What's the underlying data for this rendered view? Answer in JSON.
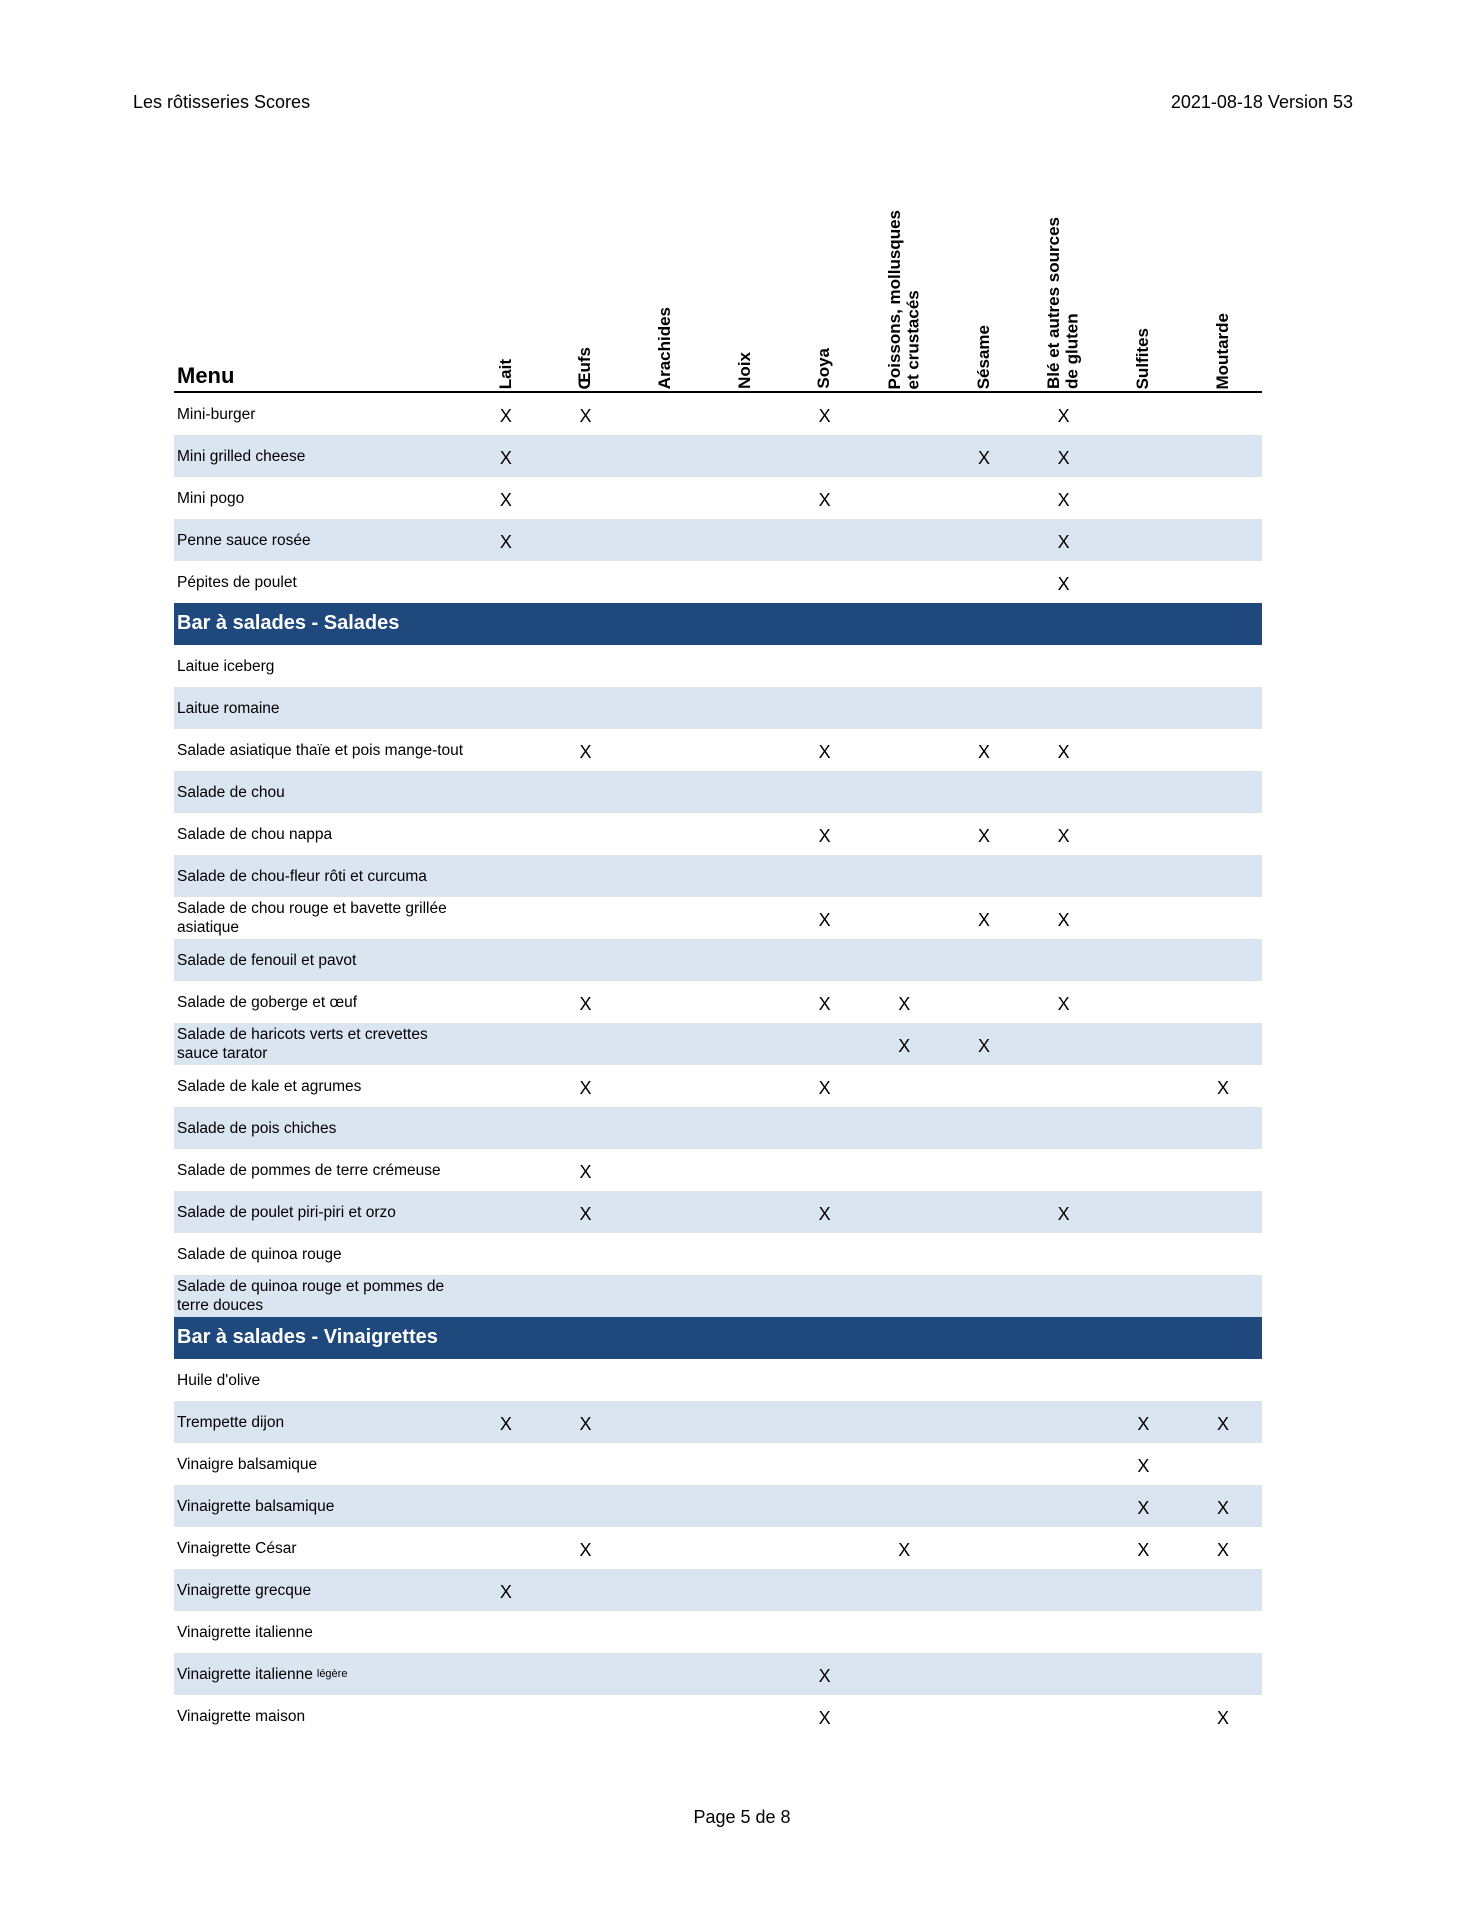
{
  "header": {
    "title": "Les rôtisseries Scores",
    "version": "2021-08-18 Version 53"
  },
  "footer": {
    "page": "Page 5 de 8"
  },
  "table": {
    "menu_label": "Menu",
    "columns": [
      "Lait",
      "Œufs",
      "Arachides",
      "Noix",
      "Soya",
      "Poissons, mollusques\net crustacés",
      "Sésame",
      "Blé et autres sources\nde gluten",
      "Sulfites",
      "Moutarde"
    ],
    "colors": {
      "section_bg": "#1f497d",
      "stripe": "#dbe5f1"
    },
    "groups": [
      {
        "section": "",
        "rows": [
          {
            "name": "Mini-burger",
            "marks": [
              "X",
              "X",
              "",
              "",
              "X",
              "",
              "",
              "X",
              "",
              ""
            ]
          },
          {
            "name": "Mini grilled cheese",
            "marks": [
              "X",
              "",
              "",
              "",
              "",
              "",
              "X",
              "X",
              "",
              ""
            ]
          },
          {
            "name": "Mini pogo",
            "marks": [
              "X",
              "",
              "",
              "",
              "X",
              "",
              "",
              "X",
              "",
              ""
            ]
          },
          {
            "name": "Penne sauce rosée",
            "marks": [
              "X",
              "",
              "",
              "",
              "",
              "",
              "",
              "X",
              "",
              ""
            ]
          },
          {
            "name": "Pépites de poulet",
            "marks": [
              "",
              "",
              "",
              "",
              "",
              "",
              "",
              "X",
              "",
              ""
            ]
          }
        ]
      },
      {
        "section": "Bar à salades - Salades",
        "rows": [
          {
            "name": "Laitue iceberg",
            "marks": [
              "",
              "",
              "",
              "",
              "",
              "",
              "",
              "",
              "",
              ""
            ]
          },
          {
            "name": "Laitue romaine",
            "marks": [
              "",
              "",
              "",
              "",
              "",
              "",
              "",
              "",
              "",
              ""
            ]
          },
          {
            "name": "Salade asiatique thaïe et pois mange-tout",
            "marks": [
              "",
              "X",
              "",
              "",
              "X",
              "",
              "X",
              "X",
              "",
              ""
            ]
          },
          {
            "name": "Salade de chou",
            "marks": [
              "",
              "",
              "",
              "",
              "",
              "",
              "",
              "",
              "",
              ""
            ]
          },
          {
            "name": "Salade de chou nappa",
            "marks": [
              "",
              "",
              "",
              "",
              "X",
              "",
              "X",
              "X",
              "",
              ""
            ]
          },
          {
            "name": "Salade de chou-fleur rôti et curcuma",
            "marks": [
              "",
              "",
              "",
              "",
              "",
              "",
              "",
              "",
              "",
              ""
            ]
          },
          {
            "name": "Salade de chou rouge et bavette grillée asiatique",
            "marks": [
              "",
              "",
              "",
              "",
              "X",
              "",
              "X",
              "X",
              "",
              ""
            ]
          },
          {
            "name": "Salade de fenouil et pavot",
            "marks": [
              "",
              "",
              "",
              "",
              "",
              "",
              "",
              "",
              "",
              ""
            ]
          },
          {
            "name": "Salade de goberge et œuf",
            "marks": [
              "",
              "X",
              "",
              "",
              "X",
              "X",
              "",
              "X",
              "",
              ""
            ]
          },
          {
            "name": "Salade de haricots verts et crevettes sauce tarator",
            "marks": [
              "",
              "",
              "",
              "",
              "",
              "X",
              "X",
              "",
              "",
              ""
            ]
          },
          {
            "name": "Salade de kale et agrumes",
            "marks": [
              "",
              "X",
              "",
              "",
              "X",
              "",
              "",
              "",
              "",
              "X"
            ]
          },
          {
            "name": "Salade de pois chiches",
            "marks": [
              "",
              "",
              "",
              "",
              "",
              "",
              "",
              "",
              "",
              ""
            ]
          },
          {
            "name": "Salade de pommes de terre crémeuse",
            "marks": [
              "",
              "X",
              "",
              "",
              "",
              "",
              "",
              "",
              "",
              ""
            ]
          },
          {
            "name": "Salade de poulet piri-piri et orzo",
            "marks": [
              "",
              "X",
              "",
              "",
              "X",
              "",
              "",
              "X",
              "",
              ""
            ]
          },
          {
            "name": "Salade de quinoa rouge",
            "marks": [
              "",
              "",
              "",
              "",
              "",
              "",
              "",
              "",
              "",
              ""
            ]
          },
          {
            "name": "Salade de quinoa rouge et pommes de terre douces",
            "marks": [
              "",
              "",
              "",
              "",
              "",
              "",
              "",
              "",
              "",
              ""
            ]
          }
        ]
      },
      {
        "section": "Bar à salades - Vinaigrettes",
        "rows": [
          {
            "name": "Huile d'olive",
            "marks": [
              "",
              "",
              "",
              "",
              "",
              "",
              "",
              "",
              "",
              ""
            ]
          },
          {
            "name": "Trempette dijon",
            "marks": [
              "X",
              "X",
              "",
              "",
              "",
              "",
              "",
              "",
              "X",
              "X"
            ]
          },
          {
            "name": "Vinaigre balsamique",
            "marks": [
              "",
              "",
              "",
              "",
              "",
              "",
              "",
              "",
              "X",
              ""
            ]
          },
          {
            "name": "Vinaigrette balsamique",
            "marks": [
              "",
              "",
              "",
              "",
              "",
              "",
              "",
              "",
              "X",
              "X"
            ]
          },
          {
            "name": "Vinaigrette César",
            "marks": [
              "",
              "X",
              "",
              "",
              "",
              "X",
              "",
              "",
              "X",
              "X"
            ]
          },
          {
            "name": "Vinaigrette grecque",
            "marks": [
              "X",
              "",
              "",
              "",
              "",
              "",
              "",
              "",
              "",
              ""
            ]
          },
          {
            "name": "Vinaigrette italienne",
            "marks": [
              "",
              "",
              "",
              "",
              "",
              "",
              "",
              "",
              "",
              ""
            ]
          },
          {
            "name": "Vinaigrette italienne",
            "note": "légère",
            "marks": [
              "",
              "",
              "",
              "",
              "X",
              "",
              "",
              "",
              "",
              ""
            ]
          },
          {
            "name": "Vinaigrette maison",
            "marks": [
              "",
              "",
              "",
              "",
              "X",
              "",
              "",
              "",
              "",
              "X"
            ]
          }
        ]
      }
    ]
  }
}
